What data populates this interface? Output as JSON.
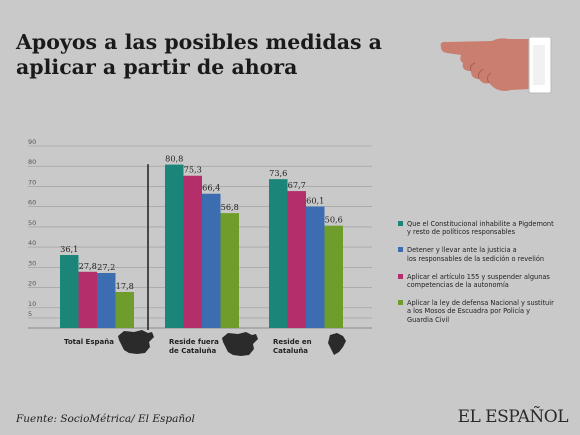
{
  "header": {
    "title": "Apoyos a las posibles medidas a aplicar a partir de ahora"
  },
  "footer": {
    "source": "Fuente: SocioMétrica/ El Español",
    "brand": "EL ESPAÑOL"
  },
  "colors": {
    "teal": "#1a8578",
    "magenta": "#b32e6a",
    "blue": "#3d6db1",
    "green": "#6e9d2b",
    "background": "#c9c9c9",
    "hand": "#c97e6f",
    "map": "#2b2b2b"
  },
  "chart_data": {
    "type": "bar",
    "title": "Apoyos a las posibles medidas a aplicar a partir de ahora",
    "categories": [
      "Total España",
      "Reside fuera de Cataluña",
      "Reside en Cataluña"
    ],
    "category_lines": [
      [
        "Total España"
      ],
      [
        "Reside fuera",
        "de Cataluña"
      ],
      [
        "Reside en",
        "Cataluña"
      ]
    ],
    "ylim": [
      0,
      90
    ],
    "yticks": [
      5,
      10,
      20,
      30,
      40,
      50,
      60,
      70,
      80,
      90
    ],
    "grid": true,
    "legend_position": "right",
    "series": [
      {
        "name": "Que el Constitucional inhabilite a Pigdemont y resto de políticos responsables",
        "color": "#1a8578",
        "values": [
          36.1,
          80.8,
          73.6
        ],
        "labels": [
          "36,1",
          "80,8",
          "73,6"
        ]
      },
      {
        "name": "Detener y llevar ante la justicia a los responsables de la sedición o revelión",
        "color": "#3d6db1",
        "values": [
          27.2,
          66.4,
          60.1
        ],
        "labels": [
          "27,2",
          "66,4",
          "60,1"
        ]
      },
      {
        "name": "Aplicar el artículo 155 y suspender algunas competencias de la autonomía",
        "color": "#b32e6a",
        "values": [
          27.8,
          75.3,
          67.7
        ],
        "labels": [
          "27,8",
          "75,3",
          "67,7"
        ]
      },
      {
        "name": "Aplicar la ley de defensa Nacional y sustituir a los Mosos de Escuadra por Policía y Guardia Civil",
        "color": "#6e9d2b",
        "values": [
          17.8,
          56.8,
          50.6
        ],
        "labels": [
          "17,8",
          "56,8",
          "50,6"
        ]
      }
    ],
    "bar_draw_order": [
      0,
      2,
      1,
      3
    ],
    "legend": [
      {
        "lines": [
          "Que el Constitucional inhabilite a Pigdemont",
          "y resto de políticos responsables"
        ],
        "color": "#1a8578"
      },
      {
        "lines": [
          "Detener y llevar ante la justicia a",
          "los responsables de la sedición  o revelión"
        ],
        "color": "#3d6db1"
      },
      {
        "lines": [
          "Aplicar el artículo 155 y suspender algunas",
          "competencias de la autonomía"
        ],
        "color": "#b32e6a"
      },
      {
        "lines": [
          "Aplicar la ley de defensa Nacional y sustituir",
          "a los Mosos de Escuadra por Policía y",
          "Guardia Civil"
        ],
        "color": "#6e9d2b"
      }
    ]
  }
}
